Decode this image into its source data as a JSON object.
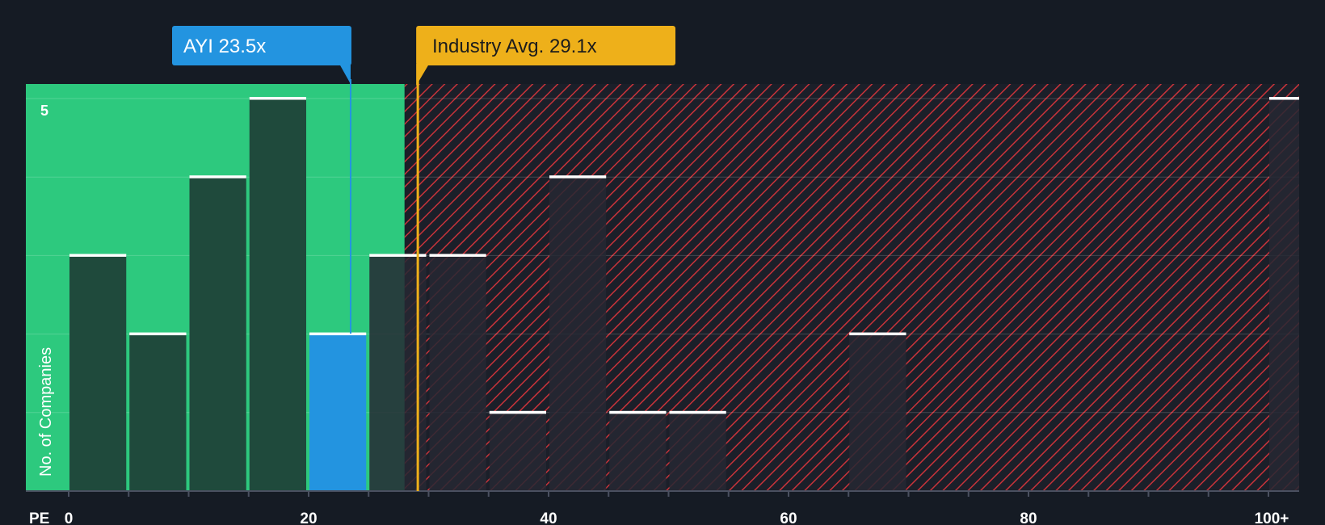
{
  "chart_data": {
    "type": "bar",
    "title": "",
    "xlabel": "PE",
    "ylabel": "No. of Companies",
    "bin_width": 5,
    "xlim": [
      0,
      102.5
    ],
    "ylim": [
      0,
      5.15
    ],
    "x_ticks": [
      0,
      20,
      40,
      60,
      80,
      100
    ],
    "x_tick_labels": [
      "0",
      "20",
      "40",
      "60",
      "80",
      "100+"
    ],
    "y_ticks": [
      5
    ],
    "y_tick_labels": [
      "5"
    ],
    "bins": [
      {
        "start": 0,
        "value": 3
      },
      {
        "start": 5,
        "value": 2
      },
      {
        "start": 10,
        "value": 4
      },
      {
        "start": 15,
        "value": 5
      },
      {
        "start": 20,
        "value": 2,
        "highlight": true
      },
      {
        "start": 25,
        "value": 3
      },
      {
        "start": 30,
        "value": 3
      },
      {
        "start": 35,
        "value": 1
      },
      {
        "start": 40,
        "value": 4
      },
      {
        "start": 45,
        "value": 1
      },
      {
        "start": 50,
        "value": 1
      },
      {
        "start": 55,
        "value": 0
      },
      {
        "start": 60,
        "value": 0
      },
      {
        "start": 65,
        "value": 2
      },
      {
        "start": 70,
        "value": 0
      },
      {
        "start": 75,
        "value": 0
      },
      {
        "start": 80,
        "value": 0
      },
      {
        "start": 85,
        "value": 0
      },
      {
        "start": 90,
        "value": 0
      },
      {
        "start": 95,
        "value": 0
      },
      {
        "start": 100,
        "value": 5
      }
    ],
    "company": {
      "ticker": "AYI",
      "value": 23.5,
      "label": "AYI 23.5x"
    },
    "industry_avg": {
      "value": 29.1,
      "label": "Industry Avg. 29.1x"
    },
    "good_zone_end": 28,
    "colors": {
      "background": "#151b24",
      "good_zone": "#2dc97e",
      "bar_good": "#1f4a3c",
      "bar_bad": "#262833",
      "bar_highlight": "#2394e0",
      "hatch": "#c8333a",
      "bar_cap": "#ffffff",
      "company": "#2394e0",
      "industry": "#eeb01a",
      "axis": "#4a5060",
      "text": "#ffffff"
    }
  }
}
